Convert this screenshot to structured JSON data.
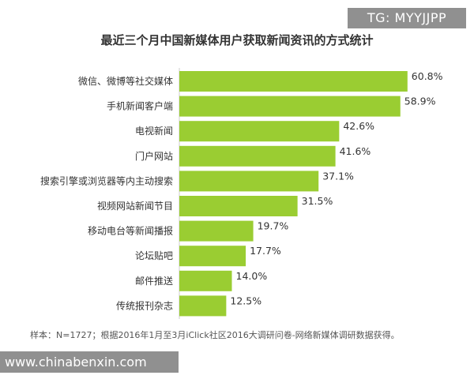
{
  "watermarks": {
    "tg": "TG: MYYJJPP",
    "site": "www.chinabenxin.com"
  },
  "footnote": "样本：N=1727；根据2016年1月至3月iClick社区2016大调研问卷-网络新媒体调研数据获得。",
  "chart_data": {
    "type": "bar",
    "orientation": "horizontal",
    "title": "最近三个月中国新媒体用户获取新闻资讯的方式统计",
    "categories": [
      "微信、微博等社交媒体",
      "手机新闻客户端",
      "电视新闻",
      "门户网站",
      "搜索引擎或浏览器等内主动搜索",
      "视频网站新闻节目",
      "移动电台等新闻播报",
      "论坛贴吧",
      "邮件推送",
      "传统报刊杂志"
    ],
    "values": [
      60.8,
      58.9,
      42.6,
      41.6,
      37.1,
      31.5,
      19.7,
      17.7,
      14.0,
      12.5
    ],
    "value_labels": [
      "60.8%",
      "58.9%",
      "42.6%",
      "41.6%",
      "37.1%",
      "31.5%",
      "19.7%",
      "17.7%",
      "14.0%",
      "12.5%"
    ],
    "unit": "%",
    "xlim": [
      0,
      100
    ],
    "bar_color": "#9ACD32",
    "grid": false,
    "legend": "none"
  }
}
